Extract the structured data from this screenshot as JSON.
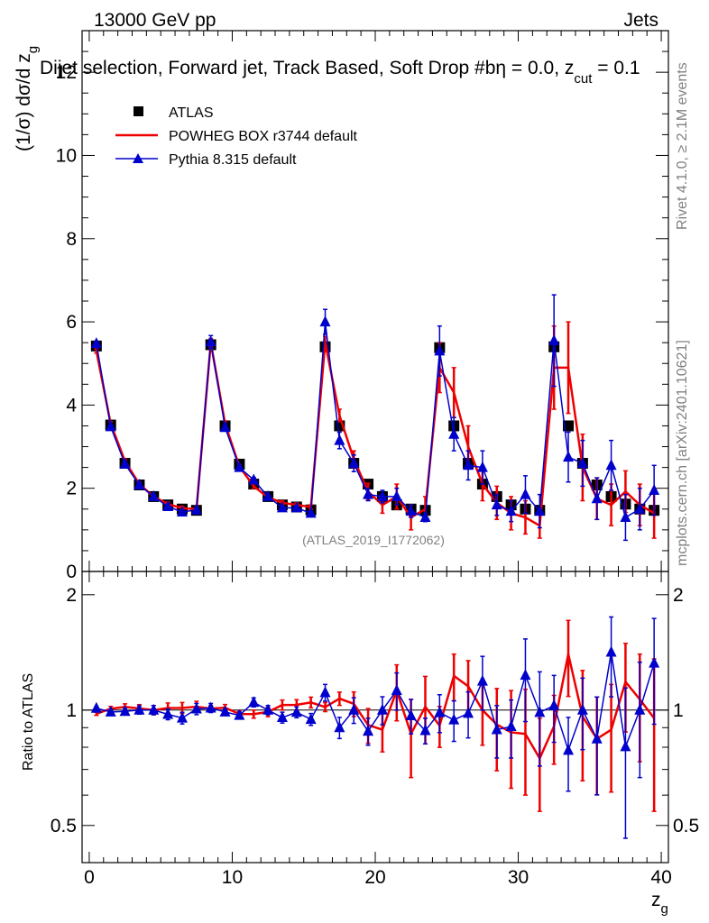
{
  "header": {
    "left": "13000 GeV pp",
    "right": "Jets",
    "subtitle": "Dijet selection, Forward jet, Track Based, Soft Drop #b",
    "subtitle_eta": "η = 0.0, z",
    "subtitle_cut": "cut",
    "subtitle_end": " = 0.1"
  },
  "side": {
    "rivet": "Rivet 4.1.0, ≥ 2.1M events",
    "mcplots": "mcplots.cern.ch [arXiv:2401.10621]"
  },
  "colors": {
    "atlas": "#000000",
    "powheg": "#ee0000",
    "pythia": "#0000cc"
  },
  "chart_data": {
    "type": "scatter",
    "analysis_label": "(ATLAS_2019_I1772062)",
    "upper": {
      "ylabel": "(1/σ) dσ/d z",
      "ylabel_sub": "g",
      "ylim": [
        0,
        13
      ],
      "yticks": [
        0,
        2,
        4,
        6,
        8,
        10,
        12
      ],
      "ytick_labels": [
        "0",
        "2",
        "4",
        "6",
        "8",
        "10",
        "12"
      ]
    },
    "lower": {
      "ylabel": "Ratio to ATLAS",
      "ylim": [
        0.4,
        2.3
      ],
      "log": true,
      "yticks": [
        0.5,
        1,
        2
      ],
      "ytick_labels_left": [
        "0.5",
        "1",
        "2"
      ],
      "ytick_labels_right": [
        "0.5",
        "1",
        "2"
      ]
    },
    "xlabel": "z",
    "xlabel_sub": "g",
    "xlim": [
      -0.5,
      40.5
    ],
    "xticks": [
      0,
      10,
      20,
      30,
      40
    ],
    "xtick_labels": [
      "0",
      "10",
      "20",
      "30",
      "40"
    ],
    "x": [
      0.5,
      1.5,
      2.5,
      3.5,
      4.5,
      5.5,
      6.5,
      7.5,
      8.5,
      9.5,
      10.5,
      11.5,
      12.5,
      13.5,
      14.5,
      15.5,
      16.5,
      17.5,
      18.5,
      19.5,
      20.5,
      21.5,
      22.5,
      23.5,
      24.5,
      25.5,
      26.5,
      27.5,
      28.5,
      29.5,
      30.5,
      31.5,
      32.5,
      33.5,
      34.5,
      35.5,
      36.5,
      37.5,
      38.5,
      39.5
    ],
    "legend": [
      "ATLAS",
      "POWHEG BOX r3744 default",
      "Pythia 8.315 default"
    ],
    "series": [
      {
        "name": "ATLAS",
        "values": [
          5.42,
          3.52,
          2.6,
          2.08,
          1.8,
          1.6,
          1.5,
          1.47,
          5.45,
          3.5,
          2.58,
          2.1,
          1.8,
          1.6,
          1.55,
          1.48,
          5.4,
          3.5,
          2.6,
          2.1,
          1.8,
          1.6,
          1.5,
          1.47,
          5.38,
          3.5,
          2.6,
          2.1,
          1.8,
          1.6,
          1.5,
          1.47,
          5.4,
          3.5,
          2.6,
          2.08,
          1.8,
          1.62,
          1.5,
          1.47
        ],
        "errors": [
          0.05,
          0.05,
          0.05,
          0.05,
          0.05,
          0.05,
          0.05,
          0.05,
          0.05,
          0.05,
          0.05,
          0.05,
          0.05,
          0.05,
          0.05,
          0.05,
          0.05,
          0.05,
          0.05,
          0.05,
          0.05,
          0.05,
          0.05,
          0.05,
          0.05,
          0.05,
          0.05,
          0.05,
          0.05,
          0.05,
          0.05,
          0.05,
          0.05,
          0.05,
          0.05,
          0.05,
          0.05,
          0.05,
          0.05,
          0.05
        ]
      },
      {
        "name": "POWHEG BOX r3744 default",
        "values": [
          5.3,
          3.55,
          2.65,
          2.1,
          1.8,
          1.62,
          1.52,
          1.5,
          5.5,
          3.55,
          2.52,
          2.05,
          1.78,
          1.65,
          1.6,
          1.55,
          5.5,
          3.75,
          2.7,
          1.92,
          1.6,
          1.8,
          1.3,
          1.5,
          4.9,
          4.3,
          3.0,
          2.1,
          1.65,
          1.4,
          1.3,
          1.1,
          4.9,
          4.9,
          2.5,
          1.75,
          1.6,
          1.92,
          1.6,
          1.4
        ],
        "errors": [
          0.05,
          0.05,
          0.05,
          0.05,
          0.05,
          0.05,
          0.05,
          0.05,
          0.1,
          0.07,
          0.05,
          0.05,
          0.05,
          0.05,
          0.05,
          0.05,
          0.15,
          0.15,
          0.2,
          0.2,
          0.2,
          0.3,
          0.3,
          0.3,
          0.6,
          0.6,
          0.5,
          0.4,
          0.4,
          0.4,
          0.4,
          0.3,
          1.0,
          1.1,
          0.8,
          0.5,
          0.5,
          0.5,
          0.5,
          0.6
        ]
      },
      {
        "name": "Pythia 8.315 default",
        "values": [
          5.48,
          3.48,
          2.58,
          2.08,
          1.8,
          1.56,
          1.43,
          1.48,
          5.52,
          3.46,
          2.5,
          2.2,
          1.8,
          1.53,
          1.53,
          1.4,
          6.0,
          3.15,
          2.6,
          1.85,
          1.8,
          1.8,
          1.45,
          1.3,
          5.3,
          3.3,
          2.55,
          2.5,
          1.6,
          1.45,
          1.85,
          1.45,
          5.55,
          2.75,
          2.6,
          1.75,
          2.55,
          1.3,
          1.5,
          1.95
        ],
        "errors": [
          0.05,
          0.05,
          0.05,
          0.05,
          0.05,
          0.05,
          0.05,
          0.05,
          0.15,
          0.07,
          0.05,
          0.06,
          0.05,
          0.05,
          0.05,
          0.05,
          0.3,
          0.2,
          0.2,
          0.15,
          0.15,
          0.2,
          0.15,
          0.1,
          0.6,
          0.4,
          0.35,
          0.4,
          0.25,
          0.25,
          0.45,
          0.4,
          1.1,
          0.6,
          0.55,
          0.5,
          0.6,
          0.55,
          0.5,
          0.6
        ]
      }
    ]
  }
}
